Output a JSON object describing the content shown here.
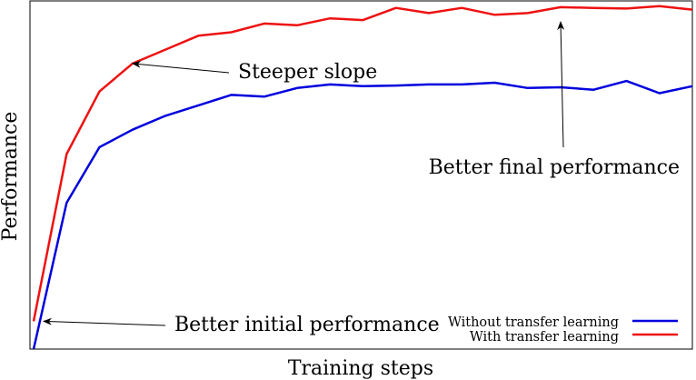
{
  "chart_data": {
    "type": "line",
    "title": "",
    "xlabel": "Training steps",
    "ylabel": "Performance",
    "x": [
      0,
      1,
      2,
      3,
      4,
      5,
      6,
      7,
      8,
      9,
      10,
      11,
      12,
      13,
      14,
      15,
      16,
      17,
      18,
      19,
      20
    ],
    "xlim": [
      0,
      20
    ],
    "ylim": [
      0,
      100
    ],
    "grid": false,
    "legend_position": "bottom-right",
    "series": [
      {
        "name": "Without transfer learning",
        "color": "#0000dd",
        "values": [
          0,
          42,
          58,
          63,
          67,
          70,
          73,
          72.5,
          75,
          76,
          75.5,
          75.7,
          76,
          76,
          76.5,
          75,
          75.2,
          74.5,
          77,
          73.5,
          75.5
        ]
      },
      {
        "name": "With transfer learning",
        "color": "#ee1111",
        "values": [
          8,
          56,
          74,
          82,
          86,
          90,
          91,
          93.5,
          93,
          95,
          94.5,
          98,
          96.5,
          98,
          96,
          96.5,
          98.2,
          98,
          97.8,
          98.5,
          97.5
        ]
      }
    ],
    "annotations": [
      {
        "text": "Steeper slope",
        "arrow_to": {
          "x": 3,
          "y": 82
        }
      },
      {
        "text": "Better final performance",
        "arrow_to": {
          "x": 16,
          "y": 94
        }
      },
      {
        "text": "Better initial performance",
        "arrow_to": {
          "x": 0.3,
          "y": 8
        }
      }
    ]
  }
}
